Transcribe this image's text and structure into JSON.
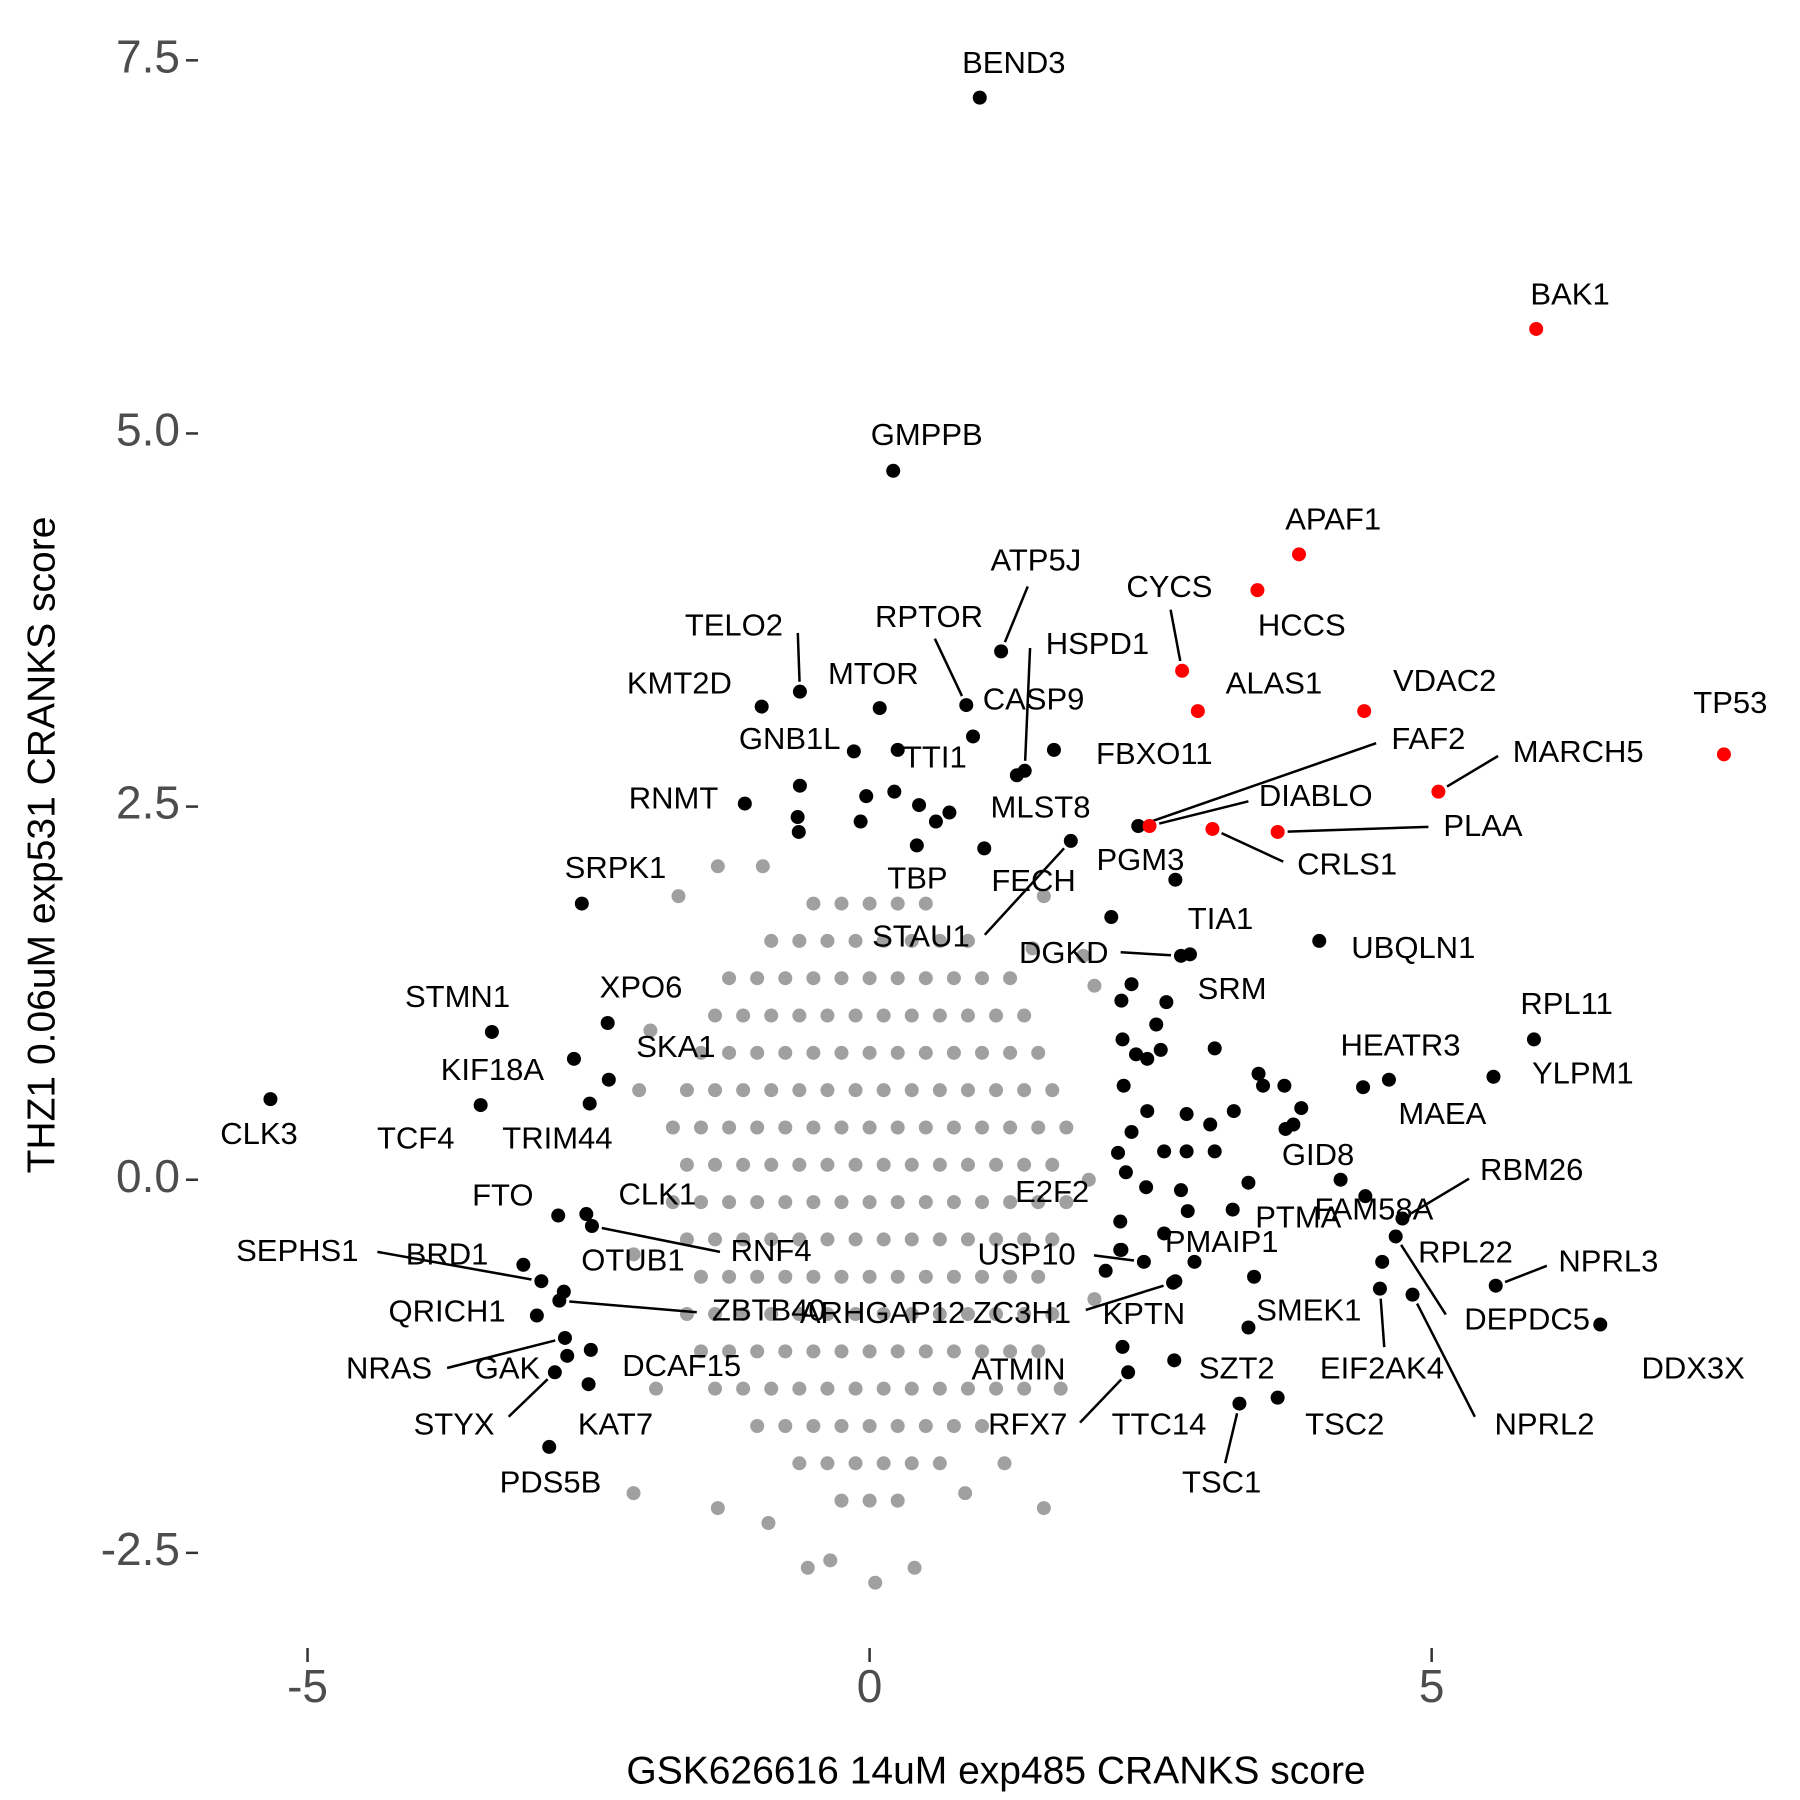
{
  "chart_data": {
    "type": "scatter",
    "x_label": "GSK626616 14uM exp485 CRANKS score",
    "y_label": "THZ1 0.06uM exp531 CRANKS score",
    "xlim": [
      -5.93,
      8.17
    ],
    "ylim": [
      -2.99,
      7.75
    ],
    "xticks": [
      -5,
      0,
      5
    ],
    "yticks": [
      -2.5,
      {
        "value": 0,
        "label": "0.0"
      },
      2.5,
      {
        "value": 5,
        "label": "5.0"
      },
      7.5
    ],
    "grid": false,
    "series": [
      {
        "color": "#a0a0a0",
        "x": [
          -0.5,
          -0.25,
          0,
          0.25,
          0.5,
          -0.875,
          -0.625,
          -0.375,
          -0.125,
          0.125,
          0.375,
          0.625,
          0.875,
          -1.25,
          -1,
          -0.75,
          -0.5,
          -0.25,
          0,
          0.25,
          0.5,
          0.75,
          1,
          1.25,
          -1.375,
          -1.125,
          -0.875,
          -0.625,
          -0.375,
          -0.125,
          0.125,
          0.375,
          0.625,
          0.875,
          1.125,
          1.375,
          -1.5,
          -1.25,
          -1,
          -0.75,
          -0.5,
          -0.25,
          0,
          0.25,
          0.5,
          0.75,
          1,
          1.25,
          1.5,
          -1.625,
          -1.375,
          -1.125,
          -0.875,
          -0.625,
          -0.375,
          -0.125,
          0.125,
          0.375,
          0.625,
          0.875,
          1.125,
          1.375,
          1.625,
          -1.75,
          -1.5,
          -1.25,
          -1,
          -0.75,
          -0.5,
          -0.25,
          0,
          0.25,
          0.5,
          0.75,
          1,
          1.25,
          1.5,
          1.75,
          -1.625,
          -1.375,
          -1.125,
          -0.875,
          -0.625,
          -0.375,
          -0.125,
          0.125,
          0.375,
          0.625,
          0.875,
          1.125,
          1.375,
          1.625,
          -1.75,
          -1.5,
          -1.25,
          -1,
          -0.75,
          -0.5,
          -0.25,
          0,
          0.25,
          0.5,
          0.75,
          1,
          1.25,
          1.5,
          1.75,
          -1.625,
          -1.375,
          -1.125,
          -0.875,
          -0.625,
          -0.375,
          -0.125,
          0.125,
          0.375,
          0.625,
          0.875,
          1.125,
          1.375,
          1.625,
          -1.5,
          -1.25,
          -1,
          -0.75,
          -0.5,
          -0.25,
          0,
          0.25,
          0.5,
          0.75,
          1,
          1.25,
          1.5,
          -1.625,
          -1.375,
          -1.125,
          -0.875,
          -0.625,
          -0.375,
          -0.125,
          0.125,
          0.375,
          0.625,
          0.875,
          1.125,
          1.375,
          1.625,
          -1.5,
          -1.25,
          -1,
          -0.75,
          -0.5,
          -0.25,
          0,
          0.25,
          0.5,
          0.75,
          1,
          1.25,
          1.5,
          -1.375,
          -1.125,
          -0.875,
          -0.625,
          -0.375,
          -0.125,
          0.125,
          0.375,
          0.625,
          0.875,
          1.125,
          1.375,
          -1,
          -0.75,
          -0.5,
          -0.25,
          0,
          0.25,
          0.5,
          0.75,
          1,
          -0.625,
          -0.375,
          -0.125,
          0.125,
          0.375,
          0.625,
          -0.25,
          0,
          0.25,
          -1.35,
          -1.7,
          -0.95,
          1.55,
          1.45,
          2,
          1.9,
          -1.95,
          -2.05,
          1.95,
          -2.1,
          2,
          -1.9,
          1.7,
          -1.35,
          -0.55,
          -0.35,
          0.05,
          0.4,
          1.55,
          -2.1,
          0.85,
          -0.9,
          1.2
        ],
        "y": [
          1.85,
          1.85,
          1.85,
          1.85,
          1.85,
          1.6,
          1.6,
          1.6,
          1.6,
          1.6,
          1.6,
          1.6,
          1.6,
          1.35,
          1.35,
          1.35,
          1.35,
          1.35,
          1.35,
          1.35,
          1.35,
          1.35,
          1.35,
          1.35,
          1.1,
          1.1,
          1.1,
          1.1,
          1.1,
          1.1,
          1.1,
          1.1,
          1.1,
          1.1,
          1.1,
          1.1,
          0.85,
          0.85,
          0.85,
          0.85,
          0.85,
          0.85,
          0.85,
          0.85,
          0.85,
          0.85,
          0.85,
          0.85,
          0.85,
          0.6,
          0.6,
          0.6,
          0.6,
          0.6,
          0.6,
          0.6,
          0.6,
          0.6,
          0.6,
          0.6,
          0.6,
          0.6,
          0.6,
          0.35,
          0.35,
          0.35,
          0.35,
          0.35,
          0.35,
          0.35,
          0.35,
          0.35,
          0.35,
          0.35,
          0.35,
          0.35,
          0.35,
          0.35,
          0.1,
          0.1,
          0.1,
          0.1,
          0.1,
          0.1,
          0.1,
          0.1,
          0.1,
          0.1,
          0.1,
          0.1,
          0.1,
          0.1,
          -0.15,
          -0.15,
          -0.15,
          -0.15,
          -0.15,
          -0.15,
          -0.15,
          -0.15,
          -0.15,
          -0.15,
          -0.15,
          -0.15,
          -0.15,
          -0.15,
          -0.15,
          -0.4,
          -0.4,
          -0.4,
          -0.4,
          -0.4,
          -0.4,
          -0.4,
          -0.4,
          -0.4,
          -0.4,
          -0.4,
          -0.4,
          -0.4,
          -0.4,
          -0.65,
          -0.65,
          -0.65,
          -0.65,
          -0.65,
          -0.65,
          -0.65,
          -0.65,
          -0.65,
          -0.65,
          -0.65,
          -0.65,
          -0.65,
          -0.9,
          -0.9,
          -0.9,
          -0.9,
          -0.9,
          -0.9,
          -0.9,
          -0.9,
          -0.9,
          -0.9,
          -0.9,
          -0.9,
          -0.9,
          -0.9,
          -1.15,
          -1.15,
          -1.15,
          -1.15,
          -1.15,
          -1.15,
          -1.15,
          -1.15,
          -1.15,
          -1.15,
          -1.15,
          -1.15,
          -1.15,
          -1.4,
          -1.4,
          -1.4,
          -1.4,
          -1.4,
          -1.4,
          -1.4,
          -1.4,
          -1.4,
          -1.4,
          -1.4,
          -1.4,
          -1.65,
          -1.65,
          -1.65,
          -1.65,
          -1.65,
          -1.65,
          -1.65,
          -1.65,
          -1.65,
          -1.9,
          -1.9,
          -1.9,
          -1.9,
          -1.9,
          -1.9,
          -2.15,
          -2.15,
          -2.15,
          2.1,
          1.9,
          2.1,
          1.9,
          1.55,
          1.3,
          1.5,
          1,
          0.6,
          0,
          -0.5,
          -0.8,
          -1.4,
          -1.4,
          -2.2,
          -2.6,
          -2.55,
          -2.7,
          -2.6,
          -2.2,
          -2.1,
          -2.1,
          -2.3,
          -1.9
        ]
      },
      {
        "color": "#000000",
        "x": [
          -0.64,
          -0.63,
          -0.62,
          -0.03,
          0.22,
          0.44,
          0.71,
          0.59,
          -0.08,
          2.15,
          2.24,
          2.33,
          2.25,
          2.37,
          2.47,
          2.59,
          2.55,
          3.07,
          3.46,
          3.5,
          3.69,
          3.84,
          3.7,
          3.77,
          3.03,
          3.24,
          2.82,
          2.26,
          2.47,
          2.33,
          2.62,
          2.82,
          3.07,
          2.21,
          2.28,
          2.46,
          2.77,
          3.37,
          2.83,
          2.62,
          2.24,
          2.72
        ],
        "y": [
          2.43,
          2.33,
          2.64,
          2.57,
          2.6,
          2.51,
          2.46,
          2.4,
          2.4,
          1.76,
          1.2,
          1.31,
          0.94,
          0.84,
          0.81,
          0.87,
          1.04,
          0.88,
          0.71,
          0.63,
          0.63,
          0.48,
          0.34,
          0.37,
          0.37,
          0.46,
          0.44,
          0.63,
          0.46,
          0.32,
          0.19,
          0.19,
          0.19,
          0.18,
          0.05,
          -0.05,
          -0.07,
          -0.02,
          -0.21,
          -0.36,
          -0.47,
          -0.68
        ]
      },
      {
        "color": "#000000",
        "labels": [
          "BEND3",
          "GMPPB",
          "ATP5J",
          "TELO2",
          "RPTOR",
          "HSPD1",
          "KMT2D",
          "MTOR",
          "CASP9",
          "GNB1L",
          "TTI1",
          "FBXO11",
          "RNMT",
          "MLST8",
          "TBP",
          "FECH",
          "STAU1",
          "PGM3",
          "FAF2",
          "DGKD",
          "TIA1",
          "UBQLN1",
          "SRM",
          "SRPK1",
          "STMN1",
          "XPO6",
          "RPL11",
          "HEATR3",
          "YLPM1",
          "KIF18A",
          "SKA1",
          "MAEA",
          "CLK3",
          "TCF4",
          "TRIM44",
          "GID8",
          "RBM26",
          "FAM58A",
          "E2F2",
          "PTMA",
          "FTO",
          "CLK1",
          "RNF4",
          "PMAIP1",
          "USP10",
          "RPL22",
          "NPRL3",
          "DDX3X",
          "DEPDC5",
          "NPRL2",
          "EIF2AK4",
          "SEPHS1",
          "BRD1",
          "OTUB1",
          "ZBTB40",
          "QRICH1",
          "NRAS",
          "GAK",
          "DCAF15",
          "STYX",
          "KAT7",
          "PDS5B",
          "ARHGAP12",
          "ZC3H1",
          "KPTN",
          "SMEK1",
          "ATMIN",
          "SZT2",
          "RFX7",
          "TTC14",
          "TSC1",
          "TSC2"
        ],
        "x": [
          0.98,
          0.21,
          1.17,
          -0.62,
          0.86,
          1.38,
          -0.96,
          0.09,
          0.92,
          -0.14,
          0.25,
          1.64,
          -1.11,
          1.31,
          0.42,
          1.02,
          1.79,
          2.72,
          2.39,
          2.77,
          2.85,
          4,
          2.64,
          -2.56,
          -3.36,
          -2.33,
          5.91,
          4.39,
          5.55,
          -2.63,
          -2.32,
          4.62,
          -5.33,
          -3.46,
          -2.49,
          4.19,
          4.74,
          4.41,
          2.23,
          3.23,
          -2.77,
          -2.52,
          -2.47,
          2.89,
          2.44,
          4.56,
          5.57,
          6.5,
          4.68,
          4.83,
          4.54,
          -2.92,
          -3.08,
          -2.72,
          -2.76,
          -2.96,
          -2.71,
          -2.69,
          -2.48,
          -2.8,
          -2.5,
          -2.85,
          2.1,
          2.7,
          2.23,
          3.42,
          2.25,
          2.71,
          2.3,
          3.37,
          3.29,
          3.63
        ],
        "y": [
          7.25,
          4.75,
          3.54,
          3.27,
          3.18,
          2.74,
          3.17,
          3.16,
          2.97,
          2.87,
          2.88,
          2.88,
          2.52,
          2.71,
          2.24,
          2.22,
          2.27,
          2.01,
          2.37,
          1.5,
          1.51,
          1.6,
          1.19,
          1.85,
          0.99,
          1.05,
          0.94,
          0.62,
          0.69,
          0.81,
          0.67,
          0.67,
          0.54,
          0.5,
          0.51,
          0,
          -0.26,
          -0.11,
          -0.28,
          -0.2,
          -0.24,
          -0.23,
          -0.31,
          -0.55,
          -0.55,
          -0.55,
          -0.71,
          -0.97,
          -0.38,
          -0.77,
          -0.73,
          -0.68,
          -0.57,
          -0.75,
          -0.81,
          -0.91,
          -1.06,
          -1.18,
          -1.14,
          -1.29,
          -1.37,
          -1.79,
          -0.61,
          -0.69,
          -0.47,
          -0.65,
          -1.12,
          -1.21,
          -1.29,
          -0.99,
          -1.5,
          -1.46
        ]
      },
      {
        "color": "#ff0000",
        "labels": [
          "BAK1",
          "APAF1",
          "HCCS",
          "CYCS",
          "ALAS1",
          "VDAC2",
          "TP53",
          "MARCH5",
          "DIABLO",
          "CRLS1",
          "PLAA"
        ],
        "x": [
          5.93,
          3.82,
          3.45,
          2.78,
          2.92,
          4.4,
          7.6,
          5.06,
          2.49,
          3.05,
          3.63
        ],
        "y": [
          5.7,
          4.19,
          3.95,
          3.41,
          3.14,
          3.14,
          2.85,
          2.6,
          2.37,
          2.35,
          2.33
        ]
      }
    ]
  }
}
